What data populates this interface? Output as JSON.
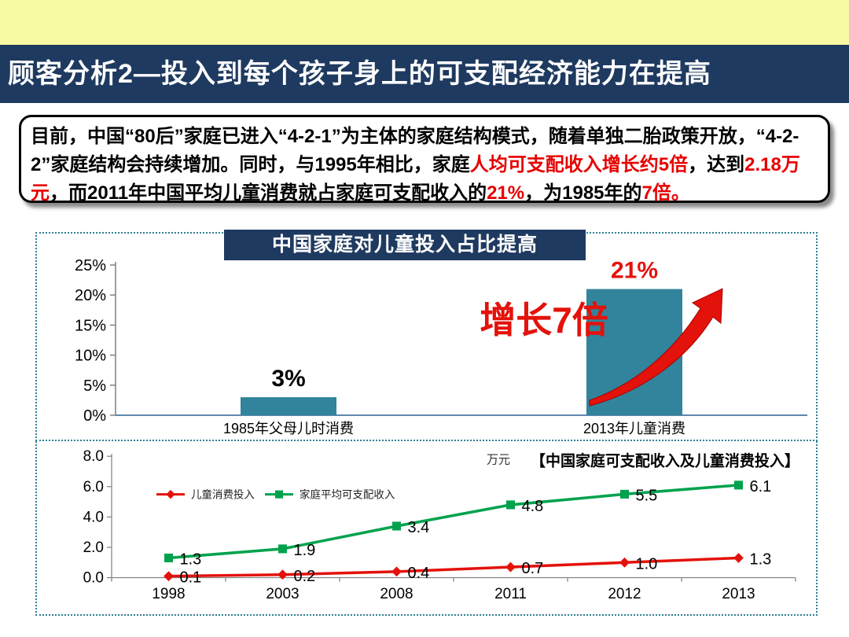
{
  "header": {
    "title": "顾客分析2—投入到每个孩子身上的可支配经济能力在提高"
  },
  "intro": {
    "segments": [
      {
        "text": "目前，中国“80后”家庭已进入“4-2-1”为主体的家庭结构模式，随着单独二胎政策开放，“4-2-2”家庭结构会持续增加。同时，与1995年相比，家庭",
        "red": false
      },
      {
        "text": "人均可支配收入增长约5倍",
        "red": true
      },
      {
        "text": "，达到",
        "red": false
      },
      {
        "text": "2.18万元",
        "red": true
      },
      {
        "text": "，而2011年中国平均儿童消费就占家庭可支配收入的",
        "red": false
      },
      {
        "text": "21%",
        "red": true
      },
      {
        "text": "，为1985年的",
        "red": false
      },
      {
        "text": "7倍。",
        "red": true
      }
    ]
  },
  "colors": {
    "band_yellow": "#F7F9A3",
    "navy": "#1F3A60",
    "bar_teal": "#31849B",
    "red": "#E3120B",
    "green": "#00A24D",
    "axis_gray": "#7F7F7F",
    "baseline_blue": "#5F87AD",
    "panel_border": "#2E7F96"
  },
  "chart_data": [
    {
      "id": "bar-chart",
      "type": "bar",
      "title": "中国家庭对儿童投入占比提高",
      "categories": [
        "1985年父母儿时消费",
        "2013年儿童消费"
      ],
      "values": [
        3,
        21
      ],
      "value_labels": [
        "3%",
        "21%"
      ],
      "value_label_colors": [
        "#000000",
        "#E3120B"
      ],
      "ylim": [
        0,
        25
      ],
      "yticks": [
        "0%",
        "5%",
        "10%",
        "15%",
        "20%",
        "25%"
      ],
      "bar_color": "#31849B",
      "annotation": "增长7倍",
      "annotation_color": "#E3120B",
      "grid": false,
      "legend_position": "none"
    },
    {
      "id": "line-chart",
      "type": "line",
      "title": "【中国家庭可支配收入及儿童消费投入】",
      "unit_label": "万元",
      "categories": [
        "1998",
        "2003",
        "2008",
        "2011",
        "2012",
        "2013"
      ],
      "series": [
        {
          "name": "儿童消费投入",
          "color": "#E3120B",
          "marker": "diamond",
          "values": [
            0.1,
            0.2,
            0.4,
            0.7,
            1.0,
            1.3
          ]
        },
        {
          "name": "家庭平均可支配收入",
          "color": "#00A24D",
          "marker": "square",
          "values": [
            1.3,
            1.9,
            3.4,
            4.8,
            5.5,
            6.1
          ]
        }
      ],
      "ylim": [
        0,
        8
      ],
      "yticks": [
        "0.0",
        "2.0",
        "4.0",
        "6.0",
        "8.0"
      ],
      "grid": false,
      "legend_position": "top-left-inside"
    }
  ]
}
